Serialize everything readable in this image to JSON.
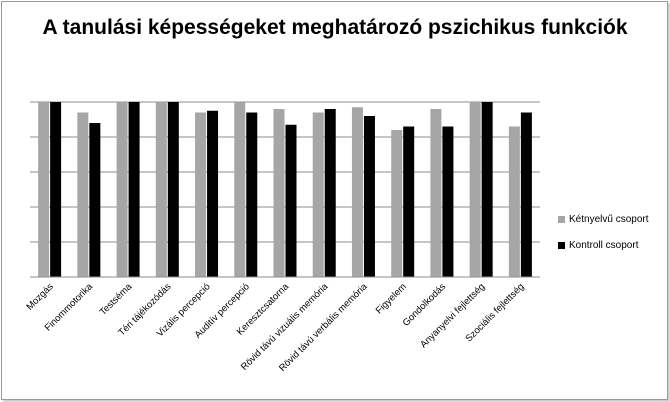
{
  "chart_data": {
    "type": "bar",
    "title": "A tanulási képességeket meghatározó pszichikus funkciók",
    "categories": [
      "Mozgás",
      "Finommotorika",
      "Testséma",
      "Téri tájékozódás",
      "Vizális percepció",
      "Auditív percepció",
      "Keresztcsatorna",
      "Rövid távú vizuális memória",
      "Rövid távú verbális memória",
      "Figyelem",
      "Gondolkodás",
      "Anyanyelvi fejlettség",
      "Szociális fejlettség"
    ],
    "series": [
      {
        "name": "Kétnyelvű csoport",
        "color": "#a6a6a6",
        "values": [
          5,
          4.7,
          5,
          5,
          4.7,
          5,
          4.8,
          4.7,
          4.85,
          4.2,
          4.8,
          5,
          4.3
        ]
      },
      {
        "name": "Kontroll csoport",
        "color": "#000000",
        "values": [
          5,
          4.4,
          5,
          5,
          4.75,
          4.7,
          4.35,
          4.8,
          4.6,
          4.3,
          4.3,
          5,
          4.7
        ]
      }
    ],
    "ylim": [
      0,
      5
    ],
    "grid": true,
    "legend": "right"
  }
}
